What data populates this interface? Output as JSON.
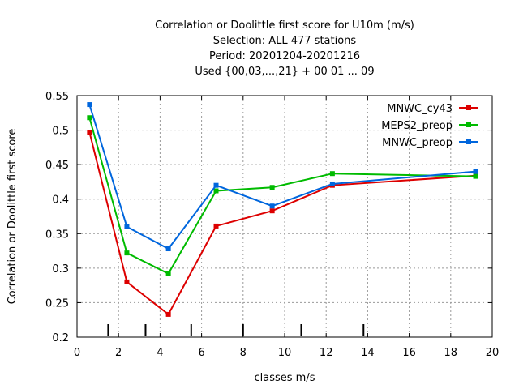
{
  "chart_data": {
    "type": "line",
    "title_lines": [
      "Correlation or Doolittle first score  for U10m (m/s)",
      "Selection: ALL    477 stations",
      "Period: 20201204-20201216",
      "Used {00,03,...,21} + 00 01 ... 09"
    ],
    "xlabel": "classes m/s",
    "ylabel": "Correlation or Doolittle first score",
    "xlim": [
      0,
      20
    ],
    "ylim": [
      0.2,
      0.55
    ],
    "xticks": [
      "0",
      "2",
      "4",
      "6",
      "8",
      "10",
      "12",
      "14",
      "16",
      "18",
      "20"
    ],
    "yticks": [
      "0.2",
      "0.25",
      "0.3",
      "0.35",
      "0.4",
      "0.45",
      "0.5",
      "0.55"
    ],
    "grid": true,
    "legend_position": "top-right",
    "class_boundaries": [
      1.5,
      3.3,
      5.5,
      8.0,
      10.8,
      13.8
    ],
    "series": [
      {
        "name": "MNWC_cy43",
        "color": "#dd0000",
        "x": [
          0.6,
          2.4,
          4.4,
          6.7,
          9.4,
          12.3,
          19.2
        ],
        "y": [
          0.497,
          0.28,
          0.233,
          0.361,
          0.383,
          0.42,
          0.434
        ]
      },
      {
        "name": "MEPS2_preop",
        "color": "#00bb00",
        "x": [
          0.6,
          2.4,
          4.4,
          6.7,
          9.4,
          12.3,
          19.2
        ],
        "y": [
          0.518,
          0.322,
          0.292,
          0.412,
          0.417,
          0.437,
          0.433
        ]
      },
      {
        "name": "MNWC_preop",
        "color": "#0066dd",
        "x": [
          0.6,
          2.4,
          4.4,
          6.7,
          9.4,
          12.3,
          19.2
        ],
        "y": [
          0.537,
          0.36,
          0.328,
          0.42,
          0.39,
          0.422,
          0.44
        ]
      }
    ]
  }
}
